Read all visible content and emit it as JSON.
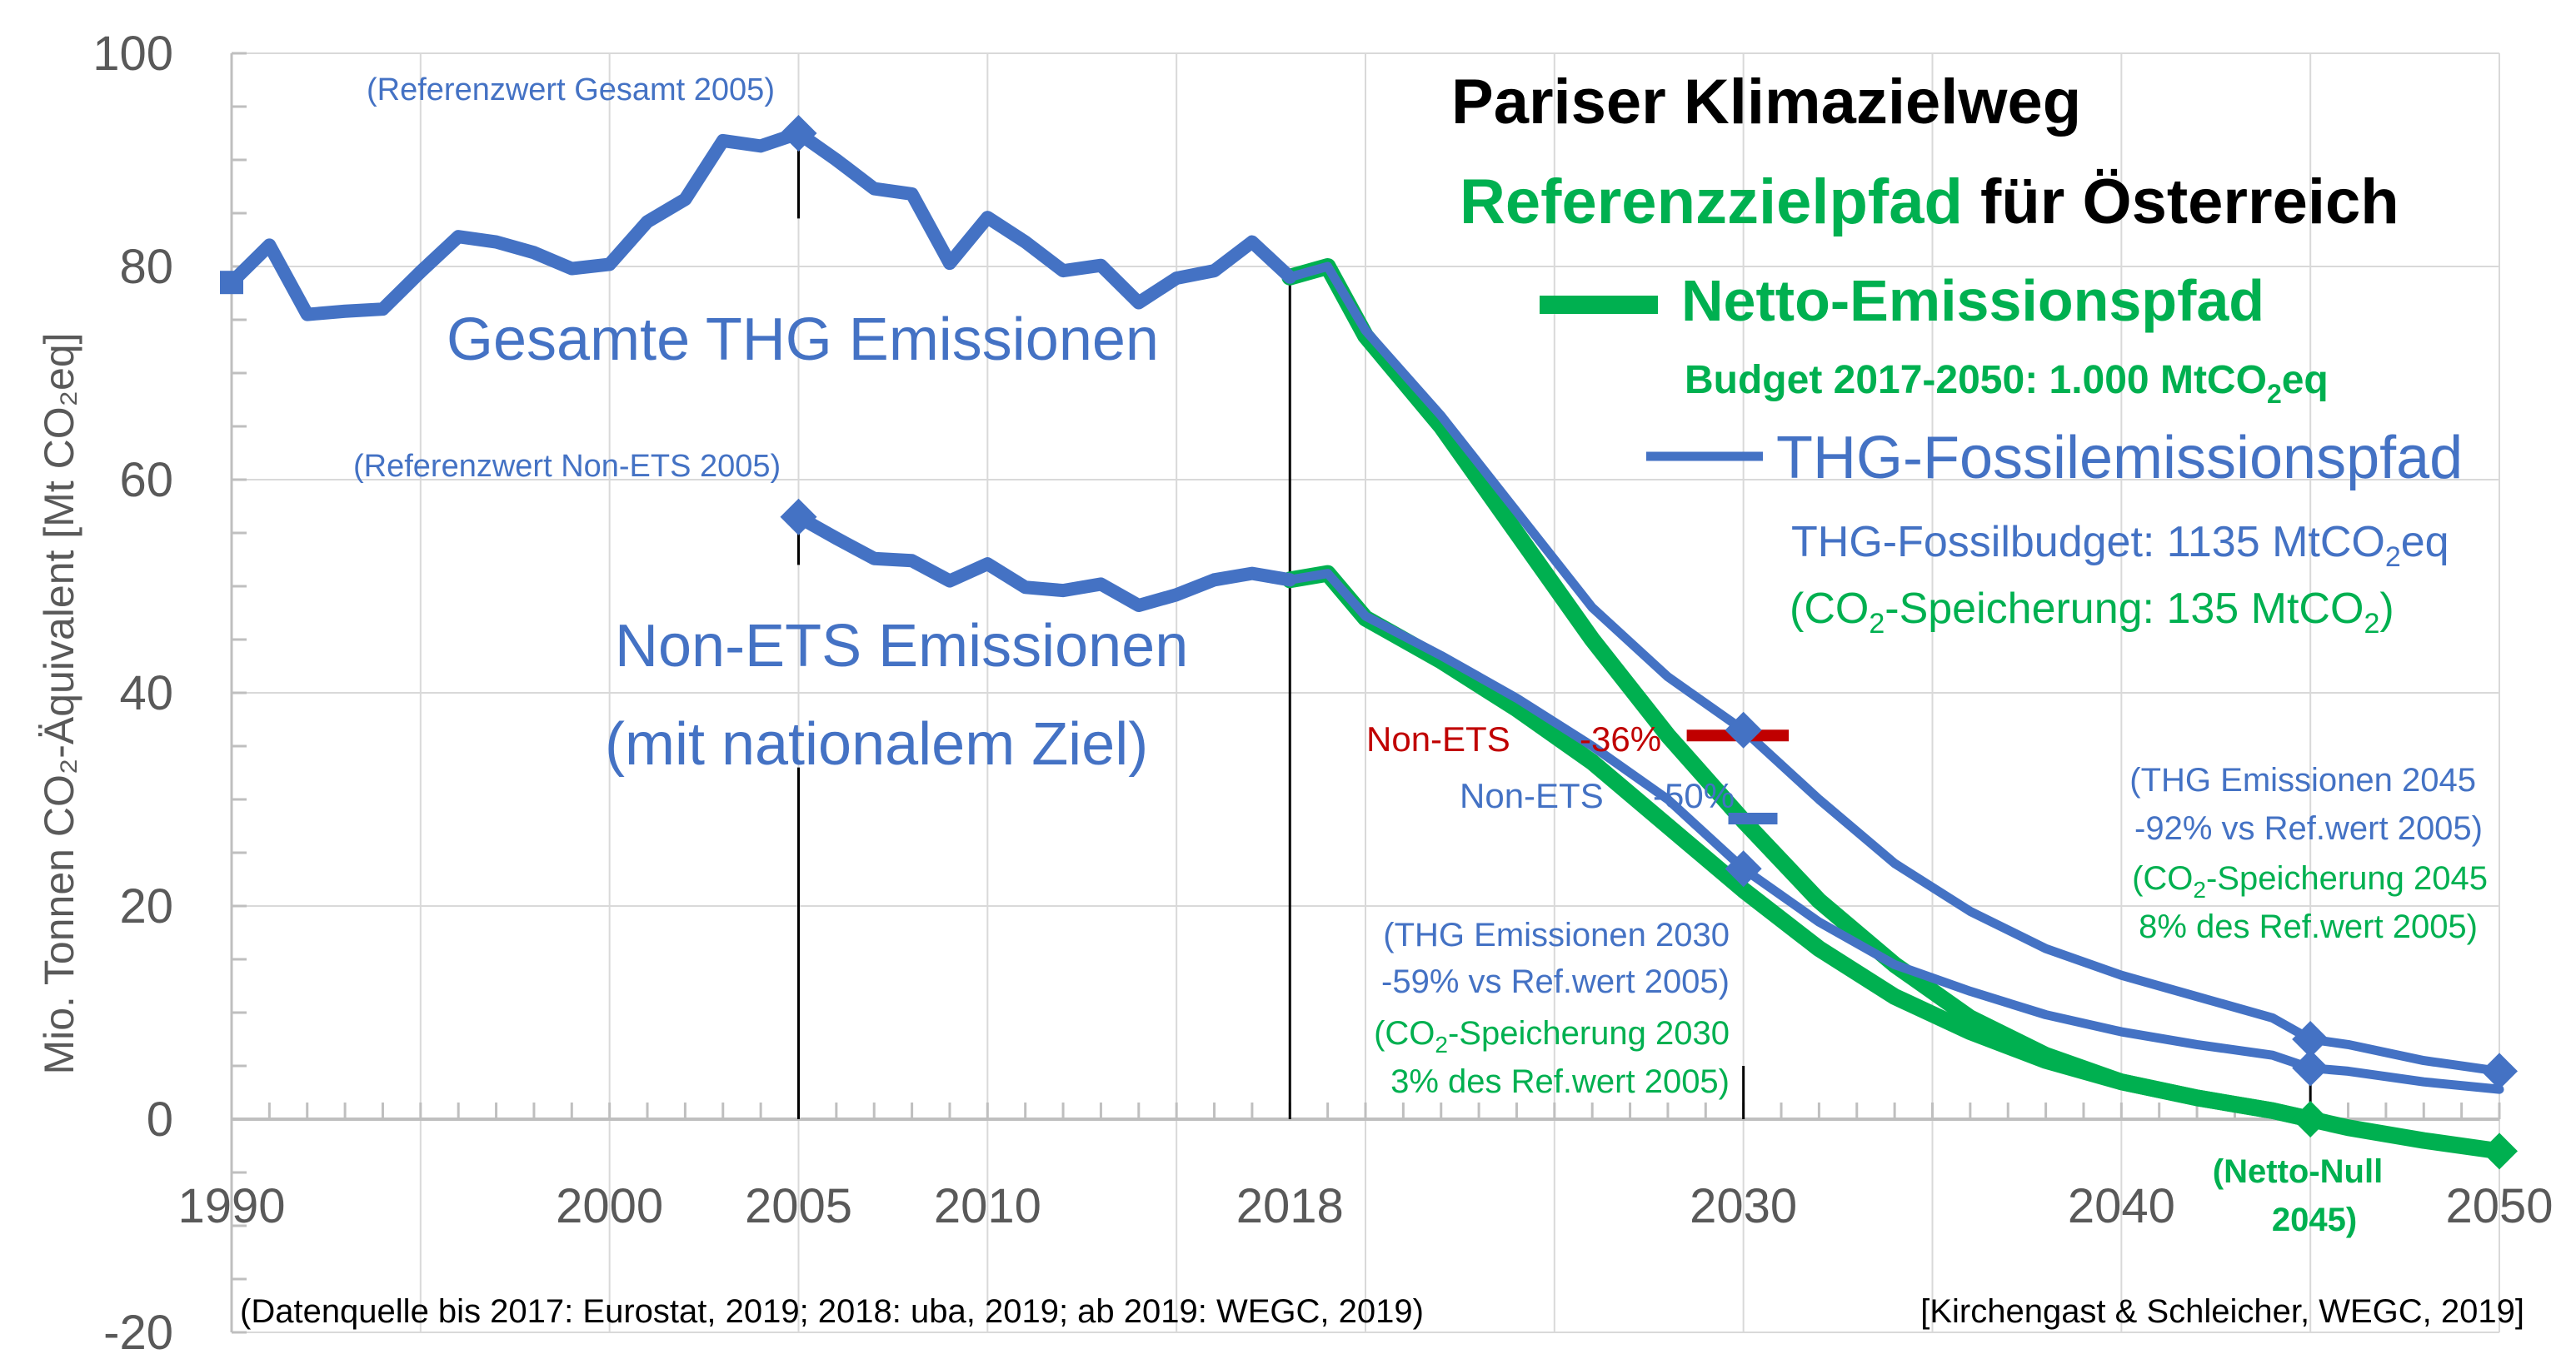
{
  "chart_data": {
    "type": "line",
    "xlim": [
      1990,
      2050
    ],
    "ylim": [
      -20,
      100
    ],
    "ylabel": "Mio. Tonnen CO₂-Äquivalent [Mt CO₂eq]",
    "x_ticks": [
      1990,
      2000,
      2005,
      2010,
      2018,
      2030,
      2040,
      2050
    ],
    "y_ticks": [
      -20,
      0,
      20,
      40,
      60,
      80,
      100
    ],
    "grid": true,
    "series": [
      {
        "name": "Gesamte THG Emissionen",
        "color": "#4472C4",
        "x": [
          1990,
          1991,
          1992,
          1993,
          1994,
          1995,
          1996,
          1997,
          1998,
          1999,
          2000,
          2001,
          2002,
          2003,
          2004,
          2005,
          2006,
          2007,
          2008,
          2009,
          2010,
          2011,
          2012,
          2013,
          2014,
          2015,
          2016,
          2017,
          2018
        ],
        "y": [
          78.5,
          82,
          75.5,
          75.8,
          76,
          79.5,
          82.8,
          82.3,
          81.3,
          79.8,
          80.2,
          84.2,
          86.3,
          91.8,
          91.3,
          92.5,
          90,
          87.3,
          86.8,
          80.3,
          84.6,
          82.3,
          79.6,
          80.1,
          76.6,
          78.9,
          79.6,
          82.3,
          79
        ]
      },
      {
        "name": "Non-ETS Emissionen",
        "color": "#4472C4",
        "x": [
          2005,
          2006,
          2007,
          2008,
          2009,
          2010,
          2011,
          2012,
          2013,
          2014,
          2015,
          2016,
          2017,
          2018
        ],
        "y": [
          56.5,
          54.5,
          52.6,
          52.4,
          50.5,
          52.1,
          49.9,
          49.6,
          50.2,
          48.2,
          49.2,
          50.6,
          51.2,
          50.6
        ]
      },
      {
        "name": "THG-Fossilemissionspfad (Gesamt)",
        "color": "#4472C4",
        "x": [
          2018,
          2019,
          2020,
          2022,
          2024,
          2026,
          2028,
          2030,
          2032,
          2034,
          2036,
          2038,
          2040,
          2042,
          2044,
          2045,
          2046,
          2048,
          2050
        ],
        "y": [
          79,
          80,
          74,
          66,
          57,
          48,
          41.5,
          36.5,
          30,
          24,
          19.5,
          16,
          13.5,
          11.5,
          9.5,
          7.5,
          7,
          5.5,
          4.5
        ]
      },
      {
        "name": "Netto-Emissionspfad (Gesamt)",
        "color": "#00B050",
        "x": [
          2018,
          2019,
          2020,
          2022,
          2024,
          2026,
          2028,
          2030,
          2032,
          2034,
          2036,
          2038,
          2040,
          2042,
          2044,
          2045,
          2046,
          2048,
          2050
        ],
        "y": [
          79,
          80,
          73.5,
          65,
          55,
          45,
          36,
          28,
          20.5,
          14.5,
          9.5,
          6,
          3.5,
          2,
          0.8,
          0,
          -0.8,
          -2,
          -3
        ]
      },
      {
        "name": "THG-Fossilemissionspfad (Non-ETS)",
        "color": "#4472C4",
        "x": [
          2018,
          2019,
          2020,
          2022,
          2024,
          2026,
          2028,
          2030,
          2032,
          2034,
          2036,
          2038,
          2040,
          2042,
          2044,
          2045,
          2046,
          2048,
          2050
        ],
        "y": [
          50.6,
          51.2,
          47.2,
          43.5,
          39.5,
          35,
          30,
          23.5,
          18.5,
          14.5,
          12,
          9.8,
          8.2,
          7,
          6,
          4.8,
          4.5,
          3.5,
          2.8
        ]
      },
      {
        "name": "Netto-Emissionspfad (Non-ETS)",
        "color": "#00B050",
        "x": [
          2018,
          2019,
          2020,
          2022,
          2024,
          2026,
          2028,
          2030,
          2032,
          2034,
          2036,
          2038,
          2040,
          2042,
          2044,
          2045
        ],
        "y": [
          50.6,
          51.2,
          47,
          43,
          38.5,
          33.5,
          27.5,
          21.5,
          16,
          11.5,
          8.2,
          5.5,
          3.5,
          2,
          0.8,
          0
        ]
      }
    ],
    "markers": [
      {
        "x": 1990,
        "y": 78.5,
        "shape": "square",
        "color": "#4472C4"
      },
      {
        "x": 2005,
        "y": 92.5,
        "shape": "diamond",
        "color": "#4472C4"
      },
      {
        "x": 2005,
        "y": 56.5,
        "shape": "diamond",
        "color": "#4472C4"
      },
      {
        "x": 2030,
        "y": 36.5,
        "shape": "diamond",
        "color": "#4472C4"
      },
      {
        "x": 2030,
        "y": 23.5,
        "shape": "diamond",
        "color": "#4472C4"
      },
      {
        "x": 2045,
        "y": 7.5,
        "shape": "diamond",
        "color": "#4472C4"
      },
      {
        "x": 2045,
        "y": 4.8,
        "shape": "diamond",
        "color": "#4472C4"
      },
      {
        "x": 2050,
        "y": 4.5,
        "shape": "diamond",
        "color": "#4472C4"
      },
      {
        "x": 2045,
        "y": 0,
        "shape": "diamond",
        "color": "#00B050"
      },
      {
        "x": 2050,
        "y": -3,
        "shape": "diamond",
        "color": "#00B050"
      }
    ],
    "target_bars": [
      {
        "x0": 2028.5,
        "x1": 2031.2,
        "y": 36,
        "color": "#C00000"
      },
      {
        "x0": 2029.6,
        "x1": 2030.9,
        "y": 28.2,
        "color": "#4472C4"
      }
    ],
    "vlines": [
      {
        "x": 2005,
        "y0": 84.5,
        "y1": 91.5
      },
      {
        "x": 2005,
        "y0": 0,
        "y1": 33
      },
      {
        "x": 2005,
        "y0": 52,
        "y1": 55.5
      },
      {
        "x": 2018,
        "y0": 0,
        "y1": 78.5
      },
      {
        "x": 2030,
        "y0": 0,
        "y1": 5
      },
      {
        "x": 2045,
        "y0": 0,
        "y1": 9
      }
    ]
  },
  "labels": {
    "title1": "Pariser Klimazielweg",
    "title2a": "Referenzzielpfad",
    "title2b": " für Österreich",
    "legend_netto": "Netto-Emissionspfad",
    "budget_a": "Budget 2017-2050: 1.000 MtCO",
    "budget_sub": "2",
    "budget_b": "eq",
    "legend_fossil": "THG-Fossilemissionspfad",
    "fossil_budget_a": "THG-Fossilbudget: 1135 MtCO",
    "fossil_budget_sub": "2",
    "fossil_budget_b": "eq",
    "storage_a": "(CO",
    "storage_sub": "2",
    "storage_b": "-Speicherung: 135 MtCO",
    "storage_sub2": "2",
    "storage_c": ")",
    "gesamt": "Gesamte THG Emissionen",
    "nonets1": "Non-ETS Emissionen",
    "nonets2": "(mit nationalem Ziel)",
    "ref_gesamt": "(Referenzwert Gesamt 2005)",
    "ref_nonets": "(Referenzwert Non-ETS 2005)",
    "target_red_label": "Non-ETS",
    "target_red_value": "-36%",
    "target_blue_label": "Non-ETS",
    "target_blue_value": "-50%",
    "ann2030_1": "(THG Emissionen 2030",
    "ann2030_2": "-59% vs Ref.wert 2005)",
    "ann2030_3a": "(CO",
    "ann2030_3sub": "2",
    "ann2030_3b": "-Speicherung 2030",
    "ann2030_4": "3% des Ref.wert 2005)",
    "ann2045_1": "(THG Emissionen 2045",
    "ann2045_2": "-92% vs Ref.wert 2005)",
    "ann2045_3a": "(CO",
    "ann2045_3sub": "2",
    "ann2045_3b": "-Speicherung 2045",
    "ann2045_4": "8% des Ref.wert 2005)",
    "nettonull1": "(Netto-Null",
    "nettonull2": "2045)",
    "source_left": "(Datenquelle bis 2017: Eurostat, 2019; 2018: uba, 2019; ab 2019: WEGC, 2019)",
    "source_right": "[Kirchengast & Schleicher, WEGC, 2019]"
  }
}
